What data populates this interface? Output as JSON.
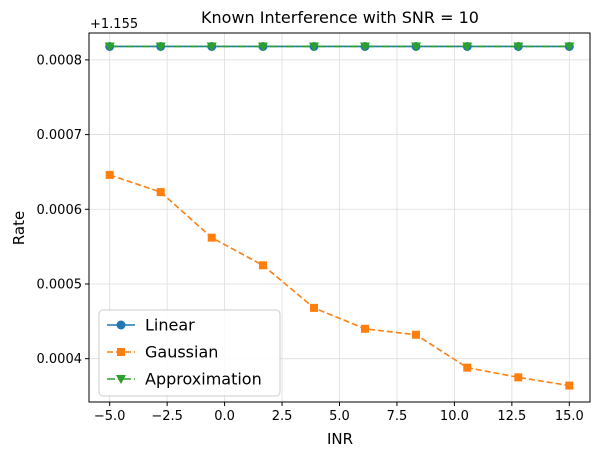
{
  "chart_data": {
    "type": "line",
    "title": "Known Interference with SNR = 10",
    "xlabel": "INR",
    "ylabel": "Rate",
    "offset_label": "+1.155",
    "x": [
      -5.0,
      -2.78,
      -0.56,
      1.67,
      3.89,
      6.11,
      8.33,
      10.56,
      12.78,
      15.0
    ],
    "xlim": [
      -5.9,
      15.9
    ],
    "ylim": [
      0.000342,
      0.000836
    ],
    "xticks": [
      -5.0,
      -2.5,
      0.0,
      2.5,
      5.0,
      7.5,
      10.0,
      12.5,
      15.0
    ],
    "xtick_labels": [
      "−5.0",
      "−2.5",
      "0.0",
      "2.5",
      "5.0",
      "7.5",
      "10.0",
      "12.5",
      "15.0"
    ],
    "yticks": [
      0.0004,
      0.0005,
      0.0006,
      0.0007,
      0.0008
    ],
    "ytick_labels": [
      "0.0004",
      "0.0005",
      "0.0006",
      "0.0007",
      "0.0008"
    ],
    "grid": true,
    "legend_position": "lower-left",
    "series": [
      {
        "name": "Linear",
        "color": "#1f77b4",
        "marker": "circle",
        "linestyle": "solid",
        "values": [
          0.000818,
          0.000818,
          0.000818,
          0.000818,
          0.000818,
          0.000818,
          0.000818,
          0.000818,
          0.000818,
          0.000818
        ]
      },
      {
        "name": "Gaussian",
        "color": "#ff7f0e",
        "marker": "square",
        "linestyle": "dashed",
        "values": [
          0.000646,
          0.000623,
          0.000562,
          0.000525,
          0.000468,
          0.00044,
          0.000432,
          0.000388,
          0.000375,
          0.000364
        ]
      },
      {
        "name": "Approximation",
        "color": "#2ca02c",
        "marker": "triangle-down",
        "linestyle": "dashdot",
        "values": [
          0.000818,
          0.000818,
          0.000818,
          0.000818,
          0.000818,
          0.000818,
          0.000818,
          0.000818,
          0.000818,
          0.000818
        ]
      }
    ]
  }
}
